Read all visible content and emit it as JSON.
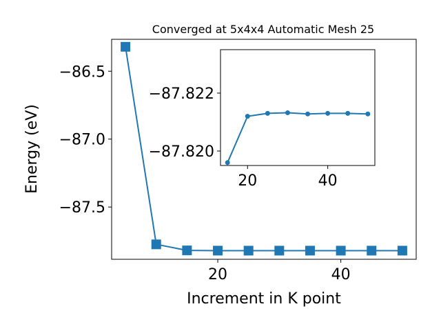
{
  "chart_data": [
    {
      "type": "line",
      "title": "Converged at 5x4x4 Automatic Mesh 25",
      "xlabel": "Increment in K point",
      "ylabel": "Energy (eV)",
      "xlim": [
        2.75,
        52.25
      ],
      "ylim": [
        -87.885,
        -86.265
      ],
      "grid": false,
      "marker": "square",
      "color": "#1f77b4",
      "x": [
        5,
        10,
        15,
        20,
        25,
        30,
        35,
        40,
        45,
        50
      ],
      "series": [
        {
          "values": [
            -86.32,
            -87.775,
            -87.8196,
            -87.8212,
            -87.8213,
            -87.8213,
            -87.8213,
            -87.8213,
            -87.8213,
            -87.8213
          ]
        }
      ],
      "xticks": [
        20,
        40
      ],
      "xtick_labels": [
        "20",
        "40"
      ],
      "yticks": [
        -86.5,
        -87.0,
        -87.5
      ],
      "ytick_labels": [
        "−86.5",
        "−87.0",
        "−87.5"
      ]
    },
    {
      "type": "line",
      "title": "",
      "xlabel": "",
      "ylabel": "",
      "inset": true,
      "xlim": [
        13.25,
        51.75
      ],
      "ylim": [
        -87.8195,
        -87.8235
      ],
      "grid": false,
      "marker": "circle",
      "color": "#1f77b4",
      "x": [
        15,
        20,
        25,
        30,
        35,
        40,
        45,
        50
      ],
      "series": [
        {
          "values": [
            -87.8196,
            -87.8212,
            -87.8213,
            -87.82132,
            -87.82128,
            -87.8213,
            -87.8213,
            -87.82128
          ]
        }
      ],
      "xticks": [
        20,
        40
      ],
      "xtick_labels": [
        "20",
        "40"
      ],
      "yticks": [
        -87.822,
        -87.82
      ],
      "ytick_labels": [
        "−87.822",
        "−87.820"
      ]
    }
  ]
}
